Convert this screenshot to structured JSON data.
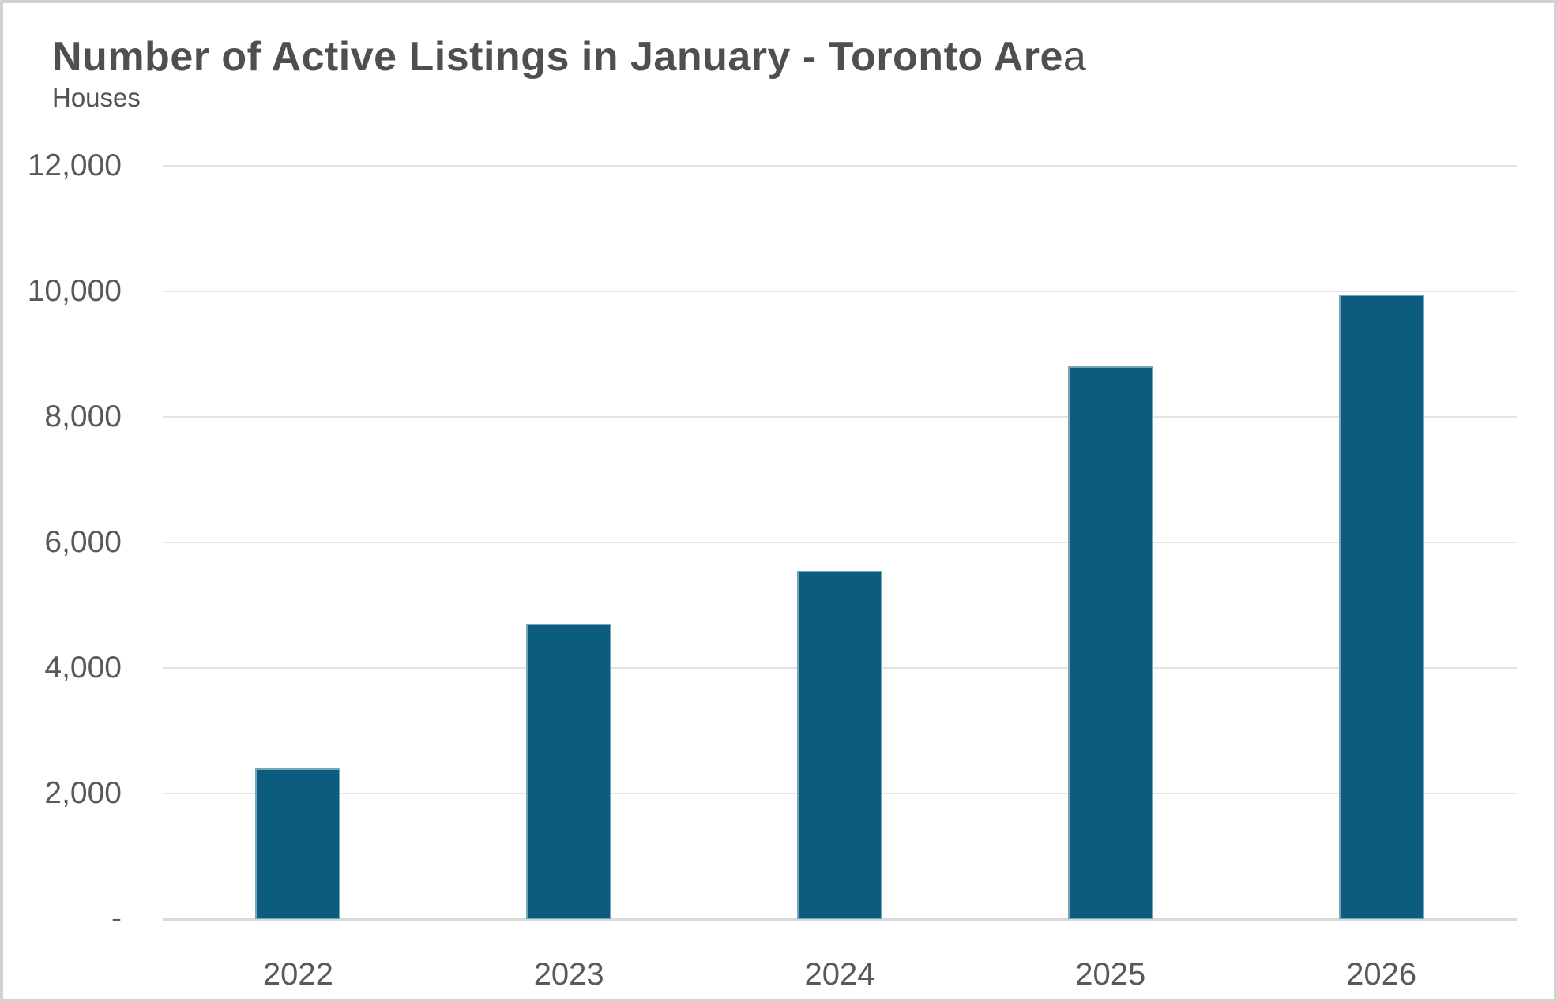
{
  "chart_data": {
    "type": "bar",
    "title_full": "Number of Active Listings in January - Toronto Area",
    "title_bold": "Number of Active Listings in January - Toronto Are",
    "title_suffix_regular": "a",
    "subtitle": "Houses",
    "categories": [
      "2022",
      "2023",
      "2024",
      "2025",
      "2026"
    ],
    "values": [
      2400,
      4700,
      5550,
      8800,
      9950
    ],
    "series_name": "Active listings (houses)",
    "xlabel": "",
    "ylabel": "Houses",
    "ylim": [
      0,
      12000
    ],
    "yticks": [
      {
        "value": 0,
        "label": "-"
      },
      {
        "value": 2000,
        "label": "2,000"
      },
      {
        "value": 4000,
        "label": "4,000"
      },
      {
        "value": 6000,
        "label": "6,000"
      },
      {
        "value": 8000,
        "label": "8,000"
      },
      {
        "value": 10000,
        "label": "10,000"
      },
      {
        "value": 12000,
        "label": "12,000"
      }
    ],
    "grid": "horizontal-only",
    "legend": "none",
    "colors": {
      "bar": "#0b5c7e",
      "title_text": "#4f4f4f",
      "axis_text": "#595959",
      "gridline": "#e4e4e4",
      "axis_line": "#d9d9d9",
      "frame_border": "#d2d2d2",
      "background": "#ffffff"
    }
  }
}
